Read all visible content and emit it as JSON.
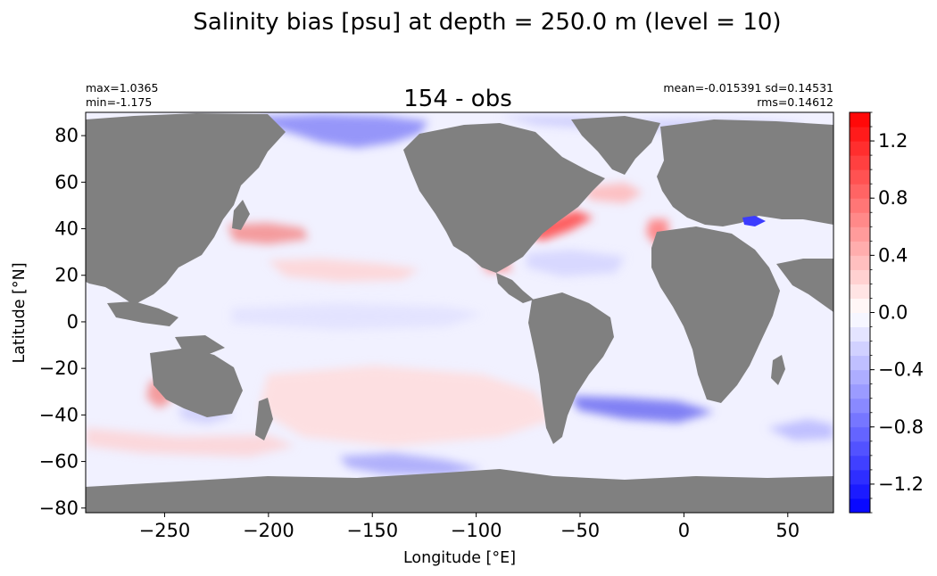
{
  "chart_data": {
    "type": "heatmap",
    "suptitle": "Salinity bias [psu] at depth = 250.0 m (level = 10)",
    "title": "154 - obs",
    "stats": {
      "max": "max=1.0365",
      "min": "min=-1.175",
      "mean_sd": "mean=-0.015391 sd=0.14531",
      "rms": "rms=0.14612"
    },
    "xlabel": "Longitude [°E]",
    "ylabel": "Latitude [°N]",
    "xlim": [
      -288,
      72
    ],
    "ylim": [
      -82,
      90
    ],
    "x_ticks": [
      -250,
      -200,
      -150,
      -100,
      -50,
      0,
      50
    ],
    "x_tick_labels": [
      "−250",
      "−200",
      "−150",
      "−100",
      "−50",
      "0",
      "50"
    ],
    "y_ticks": [
      80,
      60,
      40,
      20,
      0,
      -20,
      -40,
      -60,
      -80
    ],
    "y_tick_labels": [
      "80",
      "60",
      "40",
      "20",
      "0",
      "−20",
      "−40",
      "−60",
      "−80"
    ],
    "colorbar": {
      "range": [
        -1.4,
        1.4
      ],
      "ticks": [
        1.2,
        0.8,
        0.4,
        0.0,
        -0.4,
        -0.8,
        -1.2
      ],
      "tick_labels": [
        "1.2",
        "0.8",
        "0.4",
        "0.0",
        "−0.4",
        "−0.8",
        "−1.2"
      ],
      "colormap": "bwr",
      "low_color": "#0000ff",
      "mid_color": "#ffffff",
      "high_color": "#ff0000"
    },
    "land_color": "#808080",
    "field_features": [
      {
        "region": "Arctic Ocean (north of Siberia)",
        "value": -0.7
      },
      {
        "region": "Gulf Stream / NW Atlantic",
        "value": 0.9
      },
      {
        "region": "Kuroshio extension",
        "value": 0.6
      },
      {
        "region": "Mediterranean outflow",
        "value": 0.6
      },
      {
        "region": "Gulf of Mexico / Caribbean",
        "value": 0.5
      },
      {
        "region": "Caspian Sea",
        "value": -1.0
      },
      {
        "region": "South Atlantic 40°S",
        "value": -0.6
      },
      {
        "region": "Southern Ocean Pacific sector",
        "value": -0.5
      },
      {
        "region": "Leeuwin current (SW Australia)",
        "value": 0.6
      },
      {
        "region": "South Pacific subtropics",
        "value": 0.2
      }
    ]
  }
}
